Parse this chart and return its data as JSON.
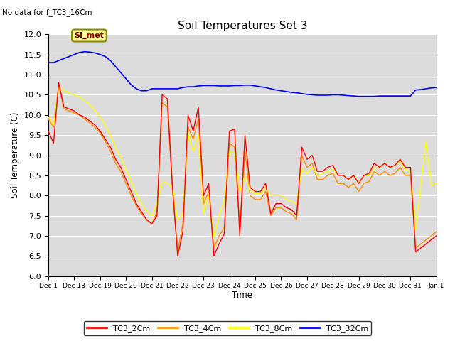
{
  "title": "Soil Temperatures Set 3",
  "no_data_label": "No data for f_TC3_16Cm",
  "ylabel": "Soil Temperature (C)",
  "xlabel": "Time",
  "ylim": [
    6.0,
    12.0
  ],
  "yticks": [
    6.0,
    6.5,
    7.0,
    7.5,
    8.0,
    8.5,
    9.0,
    9.5,
    10.0,
    10.5,
    11.0,
    11.5,
    12.0
  ],
  "x_tick_labels": [
    "Dec 1",
    "Dec 18",
    "Dec 19",
    "Dec 20",
    "Dec 21",
    "Dec 22",
    "Dec 23",
    "Dec 24",
    "Dec 25",
    "Dec 26",
    "Dec 27",
    "Dec 28",
    "Dec 29",
    "Dec 30",
    "Dec 31",
    "Jan 1"
  ],
  "legend_labels": [
    "TC3_2Cm",
    "TC3_4Cm",
    "TC3_8Cm",
    "TC3_32Cm"
  ],
  "legend_colors": [
    "#ff0000",
    "#ff8c00",
    "#ffff00",
    "#0000ff"
  ],
  "si_met_label": "SI_met",
  "si_met_color": "#ffff99",
  "si_met_border": "#8b8b00",
  "background_color": "#dcdcdc",
  "TC3_2Cm": [
    9.6,
    9.3,
    10.8,
    10.2,
    10.15,
    10.1,
    10.0,
    9.95,
    9.85,
    9.75,
    9.6,
    9.4,
    9.2,
    8.9,
    8.7,
    8.4,
    8.1,
    7.8,
    7.6,
    7.4,
    7.3,
    7.5,
    10.5,
    10.4,
    8.2,
    6.5,
    7.1,
    10.0,
    9.6,
    10.2,
    8.0,
    8.3,
    6.5,
    6.8,
    7.05,
    9.6,
    9.65,
    7.0,
    9.5,
    8.2,
    8.1,
    8.1,
    8.3,
    7.55,
    7.8,
    7.8,
    7.7,
    7.65,
    7.5,
    9.2,
    8.9,
    9.0,
    8.6,
    8.6,
    8.7,
    8.75,
    8.5,
    8.5,
    8.4,
    8.5,
    8.3,
    8.5,
    8.55,
    8.8,
    8.7,
    8.8,
    8.7,
    8.75,
    8.9,
    8.7,
    8.7,
    6.6,
    6.7,
    6.8,
    6.9,
    7.0
  ],
  "TC3_4Cm": [
    9.9,
    9.7,
    10.75,
    10.15,
    10.1,
    10.05,
    10.0,
    9.9,
    9.8,
    9.7,
    9.55,
    9.35,
    9.1,
    8.8,
    8.6,
    8.3,
    8.0,
    7.75,
    7.55,
    7.4,
    7.3,
    7.6,
    10.3,
    10.2,
    8.15,
    6.6,
    7.3,
    9.7,
    9.4,
    9.9,
    7.8,
    8.1,
    6.7,
    7.0,
    7.2,
    9.3,
    9.2,
    7.2,
    9.1,
    8.0,
    7.9,
    7.9,
    8.1,
    7.5,
    7.7,
    7.7,
    7.6,
    7.55,
    7.4,
    9.0,
    8.7,
    8.8,
    8.4,
    8.4,
    8.5,
    8.55,
    8.3,
    8.3,
    8.2,
    8.3,
    8.1,
    8.3,
    8.35,
    8.6,
    8.5,
    8.6,
    8.5,
    8.55,
    8.7,
    8.5,
    8.5,
    6.7,
    6.8,
    6.9,
    7.0,
    7.1
  ],
  "TC3_8Cm": [
    9.95,
    9.75,
    10.7,
    10.6,
    10.55,
    10.5,
    10.45,
    10.35,
    10.25,
    10.1,
    9.95,
    9.75,
    9.5,
    9.2,
    8.95,
    8.65,
    8.35,
    8.05,
    7.8,
    7.6,
    7.5,
    7.8,
    8.35,
    8.3,
    8.2,
    7.4,
    7.55,
    9.55,
    9.1,
    9.5,
    7.55,
    8.05,
    6.95,
    7.5,
    7.9,
    9.1,
    9.05,
    8.1,
    8.5,
    8.1,
    8.05,
    8.05,
    8.2,
    8.0,
    8.0,
    8.0,
    7.9,
    7.85,
    7.8,
    8.65,
    8.55,
    8.7,
    8.5,
    8.55,
    8.6,
    8.65,
    8.5,
    8.5,
    8.4,
    8.5,
    8.3,
    8.5,
    8.5,
    8.7,
    8.7,
    8.8,
    8.7,
    8.75,
    8.85,
    8.65,
    8.6,
    7.15,
    8.25,
    9.35,
    8.25,
    8.3
  ],
  "TC3_32Cm": [
    11.3,
    11.3,
    11.35,
    11.4,
    11.45,
    11.5,
    11.55,
    11.57,
    11.56,
    11.54,
    11.5,
    11.45,
    11.35,
    11.2,
    11.05,
    10.9,
    10.75,
    10.65,
    10.6,
    10.6,
    10.65,
    10.65,
    10.65,
    10.65,
    10.65,
    10.65,
    10.68,
    10.7,
    10.7,
    10.72,
    10.73,
    10.73,
    10.73,
    10.72,
    10.72,
    10.72,
    10.73,
    10.73,
    10.74,
    10.74,
    10.72,
    10.7,
    10.68,
    10.65,
    10.62,
    10.6,
    10.58,
    10.56,
    10.55,
    10.53,
    10.51,
    10.5,
    10.49,
    10.49,
    10.49,
    10.5,
    10.5,
    10.49,
    10.48,
    10.47,
    10.46,
    10.46,
    10.46,
    10.46,
    10.47,
    10.47,
    10.47,
    10.47,
    10.47,
    10.47,
    10.47,
    10.62,
    10.63,
    10.65,
    10.67,
    10.68
  ]
}
